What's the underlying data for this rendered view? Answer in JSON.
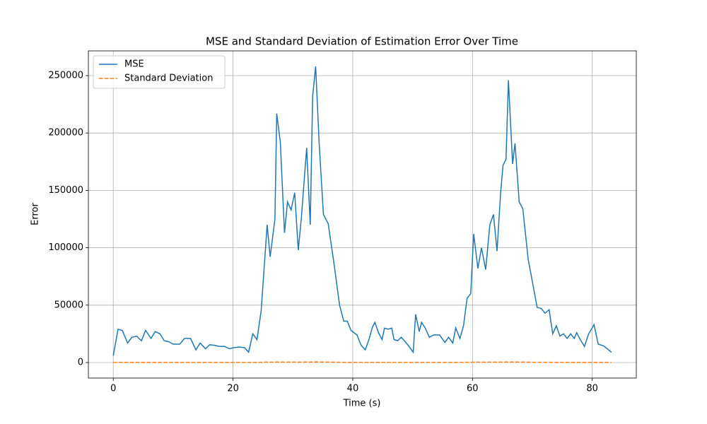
{
  "chart_data": {
    "type": "line",
    "title": "MSE and Standard Deviation of Estimation Error Over Time",
    "x_label": "Time (s)",
    "y_label": "Error",
    "x": [
      0,
      0.8,
      1.5,
      2.4,
      3.1,
      3.9,
      4.7,
      5.4,
      6.3,
      7.0,
      7.8,
      8.5,
      9.3,
      10.0,
      11.1,
      11.9,
      12.9,
      13.8,
      14.5,
      15.4,
      16.1,
      16.9,
      17.7,
      18.6,
      19.4,
      20.2,
      21.0,
      21.9,
      22.6,
      23.3,
      24.0,
      24.7,
      25.7,
      26.2,
      27.0,
      27.3,
      27.9,
      28.6,
      29.1,
      29.7,
      30.3,
      30.9,
      31.4,
      32.3,
      32.9,
      33.3,
      33.8,
      34.4,
      35.1,
      35.9,
      36.9,
      37.8,
      38.5,
      39.1,
      39.7,
      40.7,
      41.4,
      42.1,
      42.7,
      43.3,
      43.7,
      44.3,
      44.9,
      45.3,
      45.9,
      46.5,
      46.9,
      47.5,
      48.1,
      49.1,
      50.1,
      50.5,
      51.1,
      51.5,
      52.1,
      52.8,
      53.5,
      54.5,
      55.4,
      56.0,
      56.7,
      57.2,
      57.9,
      58.5,
      59.1,
      59.7,
      60.2,
      60.9,
      61.5,
      62.2,
      62.9,
      63.5,
      64.1,
      64.7,
      65.1,
      65.6,
      66.0,
      66.7,
      67.1,
      67.8,
      68.4,
      69.3,
      70.8,
      71.5,
      72.1,
      72.8,
      73.4,
      74.0,
      74.6,
      75.2,
      75.8,
      76.4,
      77.0,
      77.4,
      78.0,
      78.7,
      79.4,
      80.3,
      81.0,
      81.9,
      83.2
    ],
    "series": [
      {
        "name": "MSE",
        "color": "#1f77b4",
        "dash": false,
        "values": [
          6000,
          29000,
          28000,
          17000,
          22000,
          23000,
          19000,
          28000,
          21000,
          27000,
          25000,
          19000,
          18000,
          16000,
          16000,
          21000,
          21000,
          11000,
          17000,
          12000,
          15500,
          15000,
          14000,
          14000,
          12000,
          13000,
          13500,
          13000,
          9000,
          25000,
          20000,
          45000,
          120000,
          92000,
          125000,
          217000,
          192000,
          113000,
          140000,
          133000,
          148000,
          98000,
          125000,
          187000,
          120000,
          232000,
          258000,
          190000,
          129000,
          121000,
          85000,
          50000,
          36000,
          36000,
          28000,
          24000,
          15000,
          11000,
          20000,
          31000,
          35000,
          26000,
          20000,
          30000,
          29000,
          30000,
          20000,
          19000,
          22000,
          16000,
          9000,
          42000,
          27000,
          35000,
          30000,
          22000,
          24000,
          24000,
          17500,
          22000,
          17000,
          30000,
          21000,
          32000,
          56000,
          60000,
          112000,
          82000,
          100000,
          81000,
          120000,
          129000,
          97000,
          148000,
          172000,
          177000,
          246000,
          173000,
          191000,
          140000,
          134000,
          90000,
          48000,
          47000,
          43000,
          46000,
          25000,
          32000,
          23000,
          25000,
          21000,
          25000,
          21000,
          26000,
          20000,
          14000,
          25000,
          33000,
          16000,
          14500,
          9000
        ]
      },
      {
        "name": "Standard Deviation",
        "color": "#ff7f0e",
        "dash": true,
        "values": [
          80,
          170,
          170,
          130,
          150,
          150,
          140,
          170,
          140,
          160,
          160,
          140,
          130,
          130,
          130,
          140,
          140,
          100,
          130,
          110,
          120,
          120,
          120,
          120,
          110,
          110,
          120,
          110,
          90,
          160,
          140,
          210,
          350,
          300,
          350,
          470,
          440,
          340,
          370,
          360,
          380,
          310,
          350,
          430,
          350,
          480,
          510,
          440,
          360,
          350,
          290,
          220,
          190,
          190,
          170,
          150,
          120,
          100,
          140,
          180,
          190,
          160,
          140,
          170,
          170,
          170,
          140,
          140,
          150,
          130,
          90,
          200,
          160,
          190,
          170,
          150,
          150,
          150,
          130,
          150,
          130,
          170,
          140,
          180,
          240,
          240,
          330,
          290,
          320,
          280,
          350,
          360,
          310,
          380,
          410,
          420,
          500,
          420,
          440,
          370,
          370,
          300,
          220,
          220,
          210,
          210,
          160,
          180,
          150,
          160,
          140,
          160,
          140,
          160,
          140,
          120,
          160,
          180,
          130,
          120,
          90
        ]
      }
    ],
    "xlim": [
      -4.16,
      87.36
    ],
    "ylim": [
      -13550,
      271550
    ],
    "xticks": [
      0,
      20,
      40,
      60,
      80
    ],
    "yticks": [
      0,
      50000,
      100000,
      150000,
      200000,
      250000
    ],
    "grid": true,
    "legend": "upper left"
  }
}
